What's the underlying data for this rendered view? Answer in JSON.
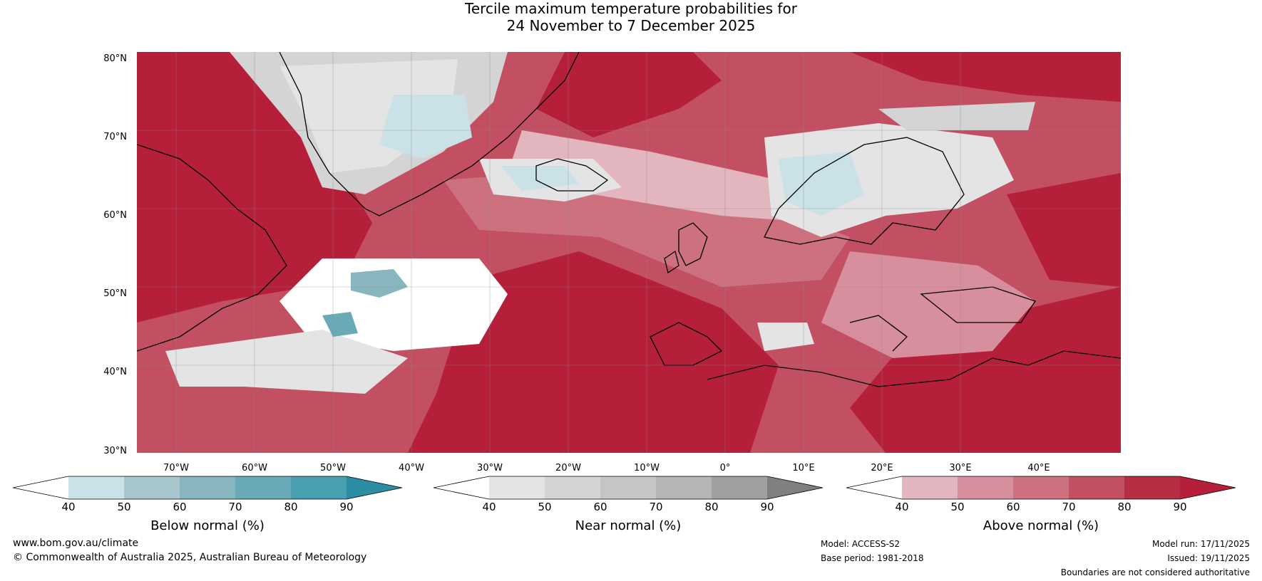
{
  "title_line1": "Tercile maximum temperature probabilities for",
  "title_line2": "24 November to 7 December 2025",
  "lat_labels": [
    "80°N",
    "70°N",
    "60°N",
    "50°N",
    "40°N",
    "30°N"
  ],
  "lon_labels": [
    "70°W",
    "60°W",
    "50°W",
    "40°W",
    "30°W",
    "20°W",
    "10°W",
    "0°",
    "10°E",
    "20°E",
    "30°E",
    "40°E"
  ],
  "legend": {
    "below": {
      "label": "Below normal (%)",
      "ticks": [
        "40",
        "50",
        "60",
        "70",
        "80",
        "90"
      ],
      "colors": [
        "#ffffff",
        "#c9e1e7",
        "#a6c6cc",
        "#88b6bf",
        "#6aaab6",
        "#489fb2",
        "#2b8ea5"
      ]
    },
    "near": {
      "label": "Near normal (%)",
      "ticks": [
        "40",
        "50",
        "60",
        "70",
        "80",
        "90"
      ],
      "colors": [
        "#ffffff",
        "#e4e4e4",
        "#d4d4d4",
        "#c5c5c5",
        "#b4b5b4",
        "#a0a0a0",
        "#808080"
      ]
    },
    "above": {
      "label": "Above normal (%)",
      "ticks": [
        "40",
        "50",
        "60",
        "70",
        "80",
        "90"
      ],
      "colors": [
        "#ffffff",
        "#e3b5be",
        "#d88f9d",
        "#cd717f",
        "#c34f62",
        "#b52e44",
        "#b51f3a"
      ]
    }
  },
  "footer": {
    "site": "www.bom.gov.au/climate",
    "copyright": "© Commonwealth of Australia 2025, Australian Bureau of Meteorology",
    "model": "Model: ACCESS-S2",
    "base_period": "Base period: 1981-2018",
    "model_run": "Model run: 17/11/2025",
    "issued": "Issued: 19/11/2025",
    "disclaimer": "Boundaries are not considered authoritative"
  }
}
